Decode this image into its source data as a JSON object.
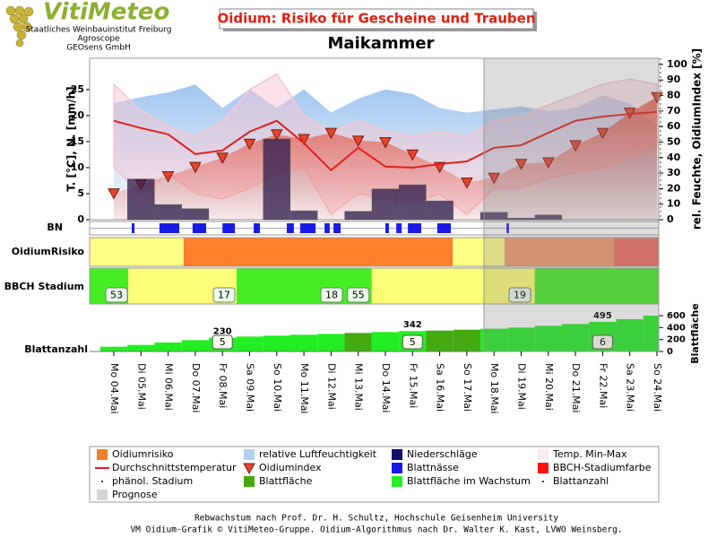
{
  "header": {
    "logo": "VitiMeteo",
    "org_lines": [
      "Staatliches Weinbauinstitut Freiburg",
      "Agroscope",
      "GEOsens GmbH"
    ]
  },
  "chart_data": {
    "type": "combo",
    "title": "Oidium: Risiko für Gescheine und Trauben",
    "subtitle": "Maikammer",
    "categories": [
      "Mo 04.Mai",
      "Di 05.Mai",
      "Mi 06.Mai",
      "Do 07.Mai",
      "Fr 08.Mai",
      "Sa 09.Mai",
      "So 10.Mai",
      "Mo 11.Mai",
      "Di 12.Mai",
      "Mi 13.Mai",
      "Do 14.Mai",
      "Fr 15.Mai",
      "Sa 16.Mai",
      "So 17.Mai",
      "Mo 18.Mai",
      "Di 19.Mai",
      "Mi 20.Mai",
      "Do 21.Mai",
      "Fr 22.Mai",
      "Sa 23.Mai",
      "So 24.Mai"
    ],
    "ylabel": "T. [°C], N. [mm/h]",
    "y2label": "rel. Feuchte, OidiumIndex [%]",
    "ylim": [
      0,
      31
    ],
    "yticks": [
      0,
      5,
      10,
      15,
      20,
      25
    ],
    "y2lim": [
      0,
      104
    ],
    "y2ticks": [
      0,
      10,
      20,
      30,
      40,
      50,
      60,
      70,
      80,
      90,
      100
    ],
    "forecast_start": 13.63,
    "series": [
      {
        "kind": "area",
        "axis": "y2",
        "color": "#9cc2ee",
        "values": [
          75,
          79,
          82,
          87,
          72,
          84,
          72,
          84,
          69,
          78,
          84,
          81,
          72,
          69,
          71,
          73,
          70,
          72,
          80,
          75,
          60
        ]
      },
      {
        "kind": "band",
        "color": "#f6c6d2",
        "values": [
          26,
          21,
          18,
          16,
          19,
          25,
          28,
          20,
          17,
          19,
          17,
          16,
          17,
          16,
          19,
          20,
          22,
          24,
          26,
          27,
          26
        ],
        "lows": [
          10,
          5,
          9,
          5,
          4,
          6,
          9,
          10,
          1,
          5,
          4,
          3,
          5,
          1,
          6,
          6,
          8,
          9,
          10,
          12,
          14
        ]
      },
      {
        "kind": "triangle",
        "axis": "y2",
        "color": "#e8442c",
        "values": [
          17,
          23,
          28,
          34,
          40,
          49,
          55,
          52,
          56,
          51,
          50,
          42,
          34,
          24,
          27,
          36,
          37,
          48,
          56,
          69,
          79
        ]
      },
      {
        "kind": "bar",
        "color": "#2a1a4a",
        "values": [
          0,
          7.8,
          2.9,
          2.1,
          0,
          0,
          15.5,
          1.7,
          0,
          1.6,
          5.9,
          6.7,
          3.6,
          0,
          1.4,
          0.3,
          0.9,
          0,
          0,
          0,
          0
        ]
      },
      {
        "kind": "line",
        "color": "#e02020",
        "values": [
          19,
          17.6,
          16.4,
          12.6,
          13.3,
          16.9,
          19,
          14.7,
          9.5,
          13.8,
          10.2,
          10,
          10.7,
          11.2,
          13.8,
          14.3,
          16.7,
          19,
          19.8,
          20.3,
          20.7
        ]
      }
    ],
    "rows": {
      "bn": {
        "label": "BN",
        "color": "#1a1ae8",
        "intervals": [
          [
            0.66,
            0.76
          ],
          [
            1.68,
            2.41
          ],
          [
            2.9,
            3.4
          ],
          [
            4.0,
            4.46
          ],
          [
            5.15,
            5.38
          ],
          [
            6.37,
            6.63
          ],
          [
            6.86,
            7.43
          ],
          [
            7.76,
            7.95
          ],
          [
            8.09,
            8.35
          ],
          [
            10.0,
            10.13
          ],
          [
            10.4,
            10.6
          ],
          [
            10.83,
            11.32
          ],
          [
            11.91,
            12.41
          ],
          [
            14.46,
            14.55
          ]
        ]
      },
      "risk": {
        "label": "OidiumRisiko",
        "segments": [
          {
            "start": -0.89,
            "end": 2.57,
            "color": "#ffff88"
          },
          {
            "start": 2.57,
            "end": 12.48,
            "color": "#ff7f2a"
          },
          {
            "start": 12.48,
            "end": 14.39,
            "color": "#ffff88"
          },
          {
            "start": 14.39,
            "end": 18.42,
            "color": "#f49a6a"
          },
          {
            "start": 18.42,
            "end": 20.07,
            "color": "#f06a60"
          }
        ]
      },
      "bbch": {
        "label": "BBCH Stadium",
        "segments": [
          {
            "start": -0.89,
            "end": 0.53,
            "color": "#44ee22"
          },
          {
            "start": 0.53,
            "end": 4.52,
            "color": "#ffff77"
          },
          {
            "start": 4.52,
            "end": 9.5,
            "color": "#44ee22"
          },
          {
            "start": 9.5,
            "end": 15.5,
            "color": "#ffff77"
          },
          {
            "start": 15.5,
            "end": 20.07,
            "color": "#44ee22"
          }
        ],
        "stages": {
          "x": [
            0.1,
            4.06,
            8.02,
            9.0,
            14.95
          ],
          "values": [
            53,
            17,
            18,
            55,
            19
          ]
        }
      },
      "leaf": {
        "label": "Blattanzahl",
        "axis_label": "Blattfläche",
        "ylim": [
          0,
          780
        ],
        "yticks": [
          0,
          200,
          400,
          600
        ],
        "values": [
          80,
          110,
          150,
          190,
          230,
          250,
          265,
          280,
          295,
          310,
          325,
          342,
          350,
          365,
          380,
          400,
          430,
          460,
          495,
          540,
          600
        ],
        "value_labels": [
          null,
          null,
          null,
          null,
          "230",
          null,
          null,
          null,
          null,
          null,
          null,
          "342",
          null,
          null,
          null,
          null,
          null,
          null,
          "495",
          null,
          null
        ],
        "colors": [
          "#22ee22",
          "#22ee22",
          "#22ee22",
          "#22ee22",
          "#22ee22",
          "#22ee22",
          "#22ee22",
          "#22ee22",
          "#22ee22",
          "#44aa11",
          "#22ee22",
          "#22ee22",
          "#44aa11",
          "#44aa11",
          "#22ee22",
          "#22ee22",
          "#22ee22",
          "#22ee22",
          "#22ee22",
          "#22ee22",
          "#22ee22"
        ],
        "count": {
          "x": [
            4,
            11,
            18
          ],
          "values": [
            5,
            5,
            6
          ]
        }
      }
    }
  },
  "legend": [
    {
      "label": "Oidiumrisiko",
      "color": "#f07f2a",
      "symbol": "square"
    },
    {
      "label": "relative Luftfeuchtigkeit",
      "color": "#b4d0f0",
      "symbol": "square"
    },
    {
      "label": "Niederschläge",
      "color": "#10106a",
      "symbol": "square"
    },
    {
      "label": "Temp. Min-Max",
      "color": "#f4eef0",
      "symbol": "square"
    },
    {
      "label": "Durchschnittstemperatur",
      "color": "#e02020",
      "symbol": "line"
    },
    {
      "label": "Oidiumindex",
      "color": "#e8442c",
      "symbol": "triangle"
    },
    {
      "label": "Blattnässe",
      "color": "#1a1ae8",
      "symbol": "square"
    },
    {
      "label": "BBCH-Stadiumfarbe",
      "color": "#ff1010",
      "symbol": "square"
    },
    {
      "label": "phänol. Stadium",
      "color": "#000000",
      "symbol": "dot"
    },
    {
      "label": "Blattfläche",
      "color": "#44aa11",
      "symbol": "square"
    },
    {
      "label": "Blattfläche im Wachstum",
      "color": "#22ee22",
      "symbol": "square"
    },
    {
      "label": "Blattanzahl",
      "color": "#000000",
      "symbol": "dot"
    },
    {
      "label": "Prognose",
      "color": "#d4d4d4",
      "symbol": "square"
    }
  ],
  "footer": [
    "Rebwachstum nach Prof. Dr. H. Schultz, Hochschule Geisenheim University",
    "VM Oidium-Grafik © VitiMeteo-Gruppe. Oidium-Algorithmus nach Dr. Walter K. Kast, LVWO Weinsberg."
  ]
}
